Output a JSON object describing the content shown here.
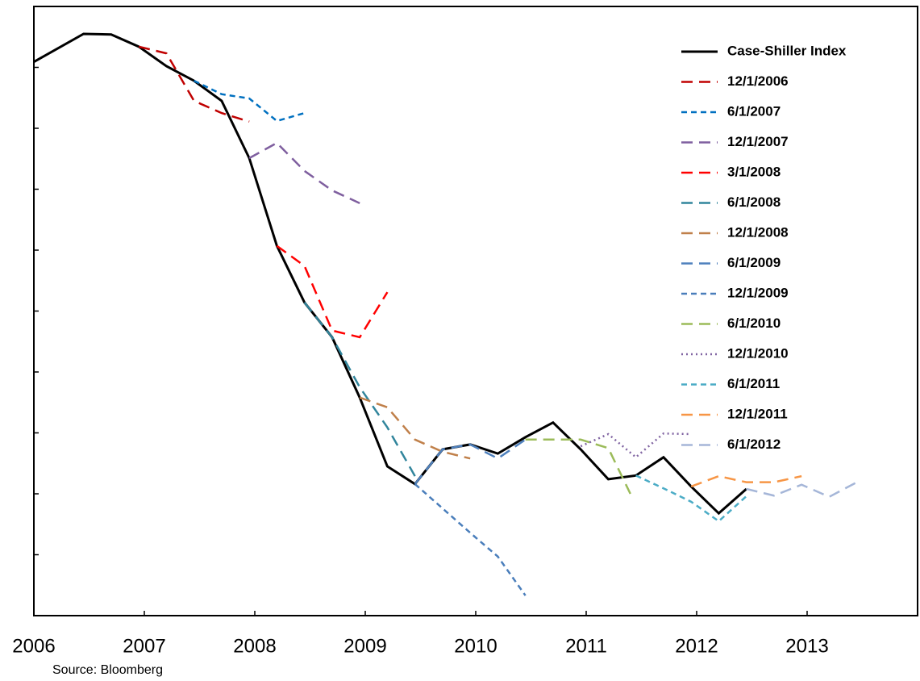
{
  "chart_data": {
    "type": "line",
    "source": "Source: Bloomberg",
    "xlim": [
      2006,
      2014
    ],
    "xticks": [
      2006,
      2007,
      2008,
      2009,
      2010,
      2011,
      2012,
      2013
    ],
    "ylim": [
      0,
      10
    ],
    "yticks": [
      1,
      2,
      3,
      4,
      5,
      6,
      7,
      8,
      9
    ],
    "series": [
      {
        "name": "Case-Shiller Index",
        "color": "#000000",
        "style": "solid",
        "x": [
          2006,
          2006.45,
          2006.7,
          2006.95,
          2007.2,
          2007.45,
          2007.7,
          2007.95,
          2008.2,
          2008.45,
          2008.7,
          2008.95,
          2009.2,
          2009.45,
          2009.7,
          2009.95,
          2010.2,
          2010.45,
          2010.7,
          2010.95,
          2011.2,
          2011.45,
          2011.7,
          2011.95,
          2012.2,
          2012.45
        ],
        "values": [
          9.09,
          9.55,
          9.54,
          9.34,
          9.02,
          8.78,
          8.45,
          7.51,
          6.07,
          5.14,
          4.57,
          3.58,
          2.45,
          2.16,
          2.73,
          2.81,
          2.66,
          2.93,
          3.17,
          2.73,
          2.24,
          2.3,
          2.6,
          2.12,
          1.68,
          2.08
        ]
      },
      {
        "name": "12/1/2006",
        "color": "#c00000",
        "style": "dashed",
        "x": [
          2006.95,
          2007.2,
          2007.45,
          2007.7,
          2007.95
        ],
        "values": [
          9.34,
          9.23,
          8.45,
          8.25,
          8.11
        ]
      },
      {
        "name": "6/1/2007",
        "color": "#0070c0",
        "style": "short",
        "x": [
          2007.45,
          2007.7,
          2007.95,
          2008.2,
          2008.45
        ],
        "values": [
          8.78,
          8.56,
          8.49,
          8.12,
          8.25
        ]
      },
      {
        "name": "12/1/2007",
        "color": "#7f5f9f",
        "style": "dashed",
        "x": [
          2007.95,
          2008.2,
          2008.45,
          2008.7,
          2008.95
        ],
        "values": [
          7.51,
          7.76,
          7.3,
          6.98,
          6.77
        ]
      },
      {
        "name": "3/1/2008",
        "color": "#ff0000",
        "style": "dashed",
        "x": [
          2008.2,
          2008.45,
          2008.7,
          2008.95,
          2009.2
        ],
        "values": [
          6.07,
          5.74,
          4.68,
          4.57,
          5.31
        ]
      },
      {
        "name": "6/1/2008",
        "color": "#31859c",
        "style": "dashed",
        "x": [
          2008.45,
          2008.7,
          2008.95,
          2009.2,
          2009.45
        ],
        "values": [
          5.14,
          4.57,
          3.75,
          3.09,
          2.29
        ]
      },
      {
        "name": "12/1/2008",
        "color": "#c0804a",
        "style": "dashed",
        "x": [
          2008.95,
          2009.2,
          2009.45,
          2009.7,
          2009.95
        ],
        "values": [
          3.58,
          3.42,
          2.89,
          2.69,
          2.58
        ]
      },
      {
        "name": "6/1/2009",
        "color": "#4f81bd",
        "style": "dashed",
        "x": [
          2009.45,
          2009.7,
          2009.95,
          2010.2,
          2010.45
        ],
        "values": [
          2.16,
          2.73,
          2.81,
          2.58,
          2.89
        ]
      },
      {
        "name": "12/1/2009",
        "color": "#4a7ebb",
        "style": "short",
        "x": [
          2009.45,
          2009.7,
          2009.95,
          2010.2,
          2010.45
        ],
        "values": [
          2.16,
          1.76,
          1.36,
          0.97,
          0.33
        ]
      },
      {
        "name": "6/1/2010",
        "color": "#9bbb59",
        "style": "dashed",
        "x": [
          2010.45,
          2010.7,
          2010.95,
          2011.2,
          2011.4
        ],
        "values": [
          2.89,
          2.89,
          2.89,
          2.75,
          2.0
        ]
      },
      {
        "name": "12/1/2010",
        "color": "#8064a2",
        "style": "dotted",
        "x": [
          2010.95,
          2011.2,
          2011.45,
          2011.7,
          2011.95
        ],
        "values": [
          2.78,
          2.98,
          2.6,
          2.99,
          2.98
        ]
      },
      {
        "name": "6/1/2011",
        "color": "#4bacc6",
        "style": "short",
        "x": [
          2011.45,
          2011.7,
          2011.95,
          2012.2,
          2012.45
        ],
        "values": [
          2.3,
          2.09,
          1.87,
          1.55,
          1.96
        ]
      },
      {
        "name": "12/1/2011",
        "color": "#f79646",
        "style": "dashed",
        "x": [
          2011.95,
          2012.2,
          2012.45,
          2012.7,
          2012.95
        ],
        "values": [
          2.12,
          2.29,
          2.19,
          2.19,
          2.29
        ]
      },
      {
        "name": "6/1/2012",
        "color": "#a5b6d8",
        "style": "dashed",
        "x": [
          2012.45,
          2012.7,
          2012.95,
          2013.2,
          2013.45
        ],
        "values": [
          2.08,
          1.97,
          2.15,
          1.95,
          2.19
        ]
      }
    ]
  }
}
